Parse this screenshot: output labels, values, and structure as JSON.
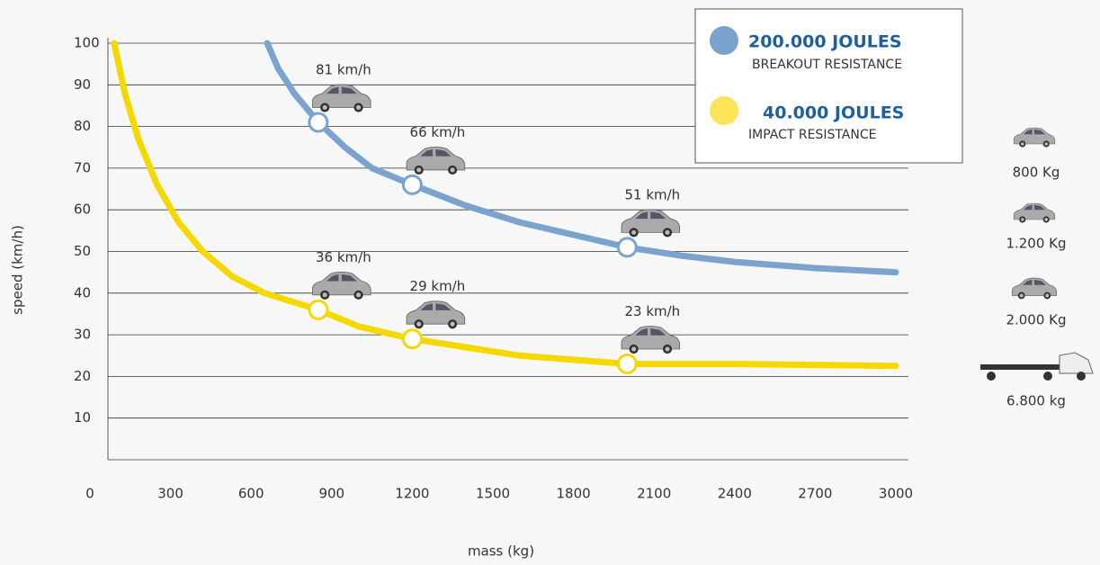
{
  "chart_data": {
    "type": "line",
    "x_label": "mass (kg)",
    "y_label": "speed (km/h)",
    "xlim": [
      0,
      3000
    ],
    "ylim": [
      0,
      100
    ],
    "xticks": [
      0,
      300,
      600,
      900,
      1200,
      1500,
      1800,
      2100,
      2400,
      2700,
      3000
    ],
    "yticks": [
      10,
      20,
      30,
      40,
      50,
      60,
      70,
      80,
      90,
      100
    ],
    "grid": true,
    "series": [
      {
        "name": "200.000 JOULES",
        "subtitle": "BREAKOUT RESISTANCE",
        "color": "#7aa3cd",
        "x": [
          660,
          700,
          760,
          850,
          950,
          1050,
          1200,
          1400,
          1600,
          1800,
          2000,
          2200,
          2400,
          2700,
          3000
        ],
        "values": [
          100,
          94,
          88,
          81,
          75,
          70,
          66,
          61,
          57,
          54,
          51,
          49,
          47.5,
          46,
          45
        ],
        "markers": {
          "x": [
            850,
            1200,
            2000
          ],
          "values": [
            81,
            66,
            51
          ],
          "value_labels": [
            "81 km/h",
            "66 km/h",
            "51 km/h"
          ]
        }
      },
      {
        "name": "40.000 JOULES",
        "subtitle": "IMPACT RESISTANCE",
        "color": "#f5d800",
        "x": [
          90,
          130,
          180,
          250,
          330,
          420,
          530,
          650,
          850,
          1000,
          1200,
          1400,
          1600,
          1800,
          2000,
          2400,
          3000
        ],
        "values": [
          100,
          88,
          77,
          66,
          57,
          50,
          44,
          40,
          36,
          32,
          29,
          27,
          25,
          24,
          23,
          23,
          22.5
        ],
        "markers": {
          "x": [
            850,
            1200,
            2000
          ],
          "values": [
            36,
            29,
            23
          ],
          "value_labels": [
            "36 km/h",
            "29 km/h",
            "23 km/h"
          ]
        }
      }
    ]
  },
  "vehicles": [
    "800 Kg",
    "1.200 Kg",
    "2.000 Kg",
    "6.800 kg"
  ]
}
